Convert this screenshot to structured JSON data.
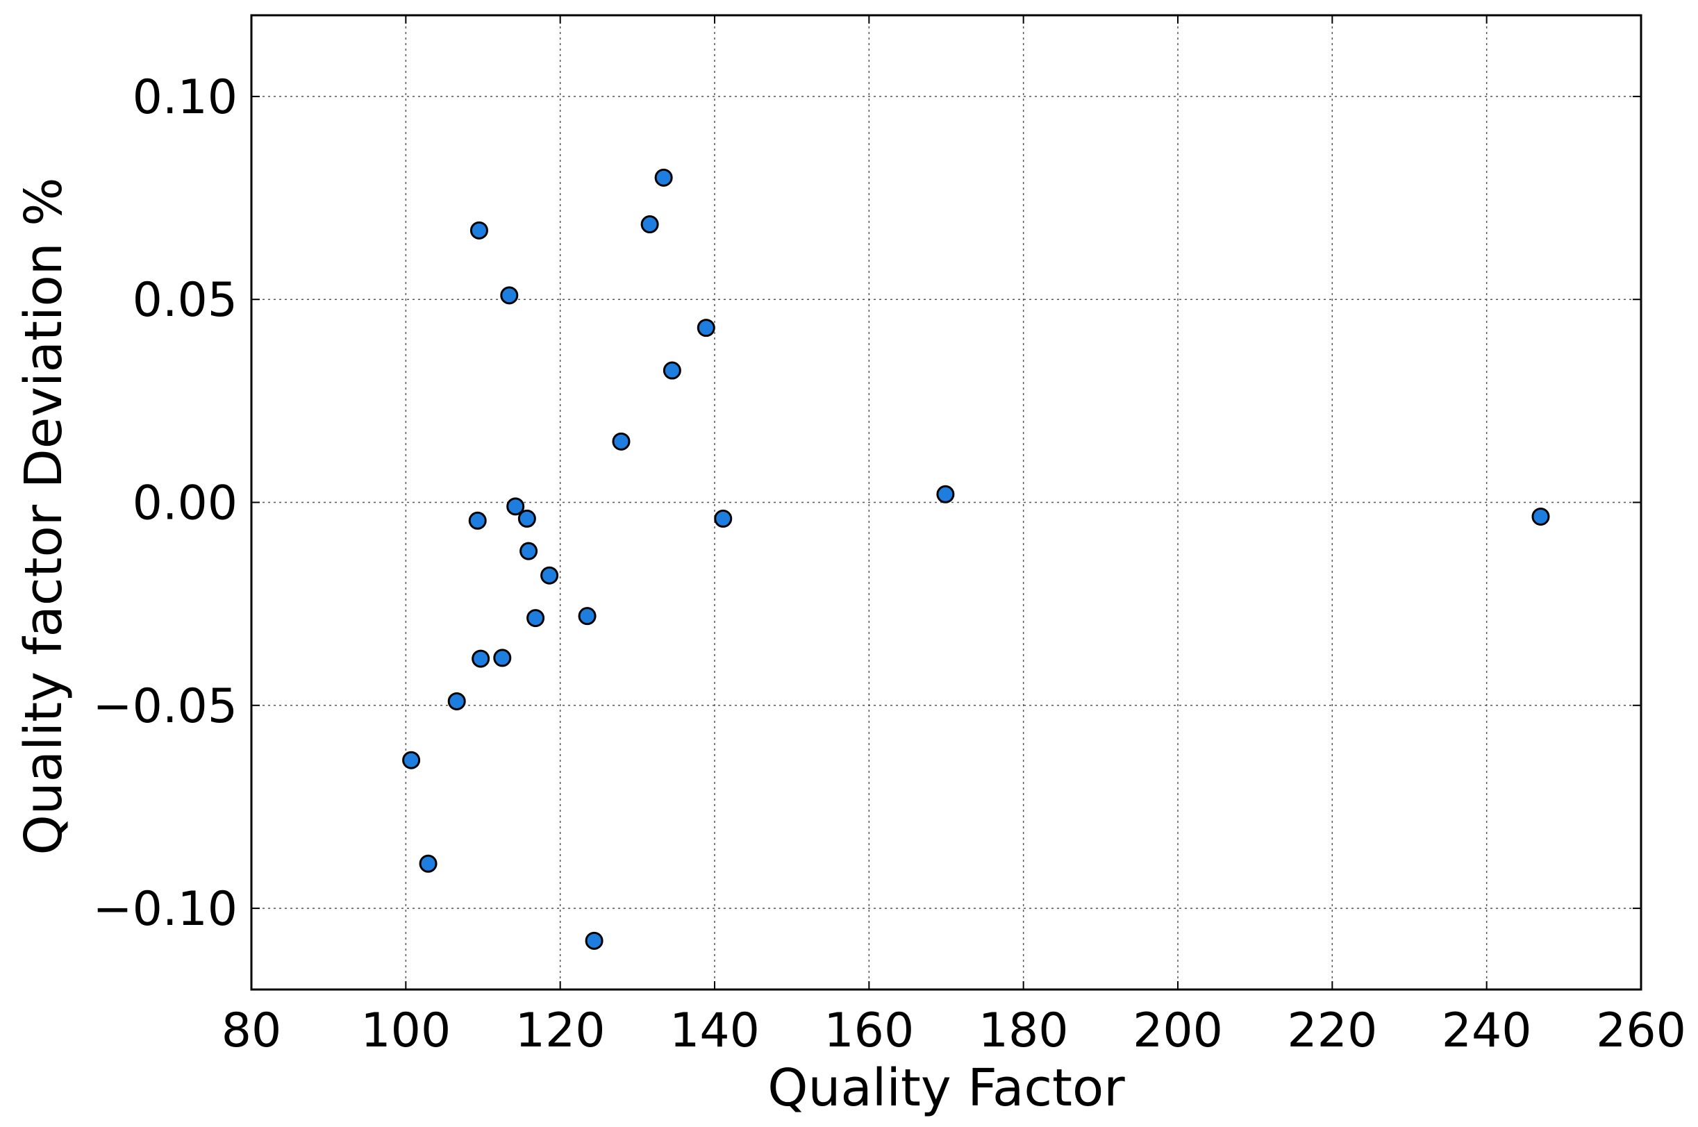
{
  "chart_data": {
    "type": "scatter",
    "title": "",
    "xlabel": "Quality Factor",
    "ylabel": "Quality factor Deviation %",
    "xlim": [
      80,
      260
    ],
    "ylim": [
      -0.12,
      0.12
    ],
    "x_ticks": [
      80,
      100,
      120,
      140,
      160,
      180,
      200,
      220,
      240,
      260
    ],
    "x_tick_labels": [
      "80",
      "100",
      "120",
      "140",
      "160",
      "180",
      "200",
      "220",
      "240",
      "260"
    ],
    "y_ticks": [
      0.1,
      0.05,
      0.0,
      -0.05,
      -0.1
    ],
    "y_tick_labels": [
      "0.10",
      "0.05",
      "0.00",
      "−0.05",
      "−0.10"
    ],
    "grid": true,
    "legend": "none",
    "marker_color": "#1e7ee0",
    "marker_edge_color": "#000000",
    "points": [
      {
        "x": 100.7,
        "y": -0.0635
      },
      {
        "x": 102.9,
        "y": -0.089
      },
      {
        "x": 106.6,
        "y": -0.049
      },
      {
        "x": 109.3,
        "y": -0.0045
      },
      {
        "x": 109.5,
        "y": 0.067
      },
      {
        "x": 109.7,
        "y": -0.0385
      },
      {
        "x": 112.5,
        "y": -0.0383
      },
      {
        "x": 113.4,
        "y": 0.051
      },
      {
        "x": 114.2,
        "y": -0.001
      },
      {
        "x": 115.7,
        "y": -0.004
      },
      {
        "x": 115.9,
        "y": -0.012
      },
      {
        "x": 116.8,
        "y": -0.0285
      },
      {
        "x": 118.6,
        "y": -0.018
      },
      {
        "x": 123.5,
        "y": -0.028
      },
      {
        "x": 124.4,
        "y": -0.108
      },
      {
        "x": 127.9,
        "y": 0.015
      },
      {
        "x": 131.6,
        "y": 0.0685
      },
      {
        "x": 133.4,
        "y": 0.08
      },
      {
        "x": 134.5,
        "y": 0.0325
      },
      {
        "x": 138.9,
        "y": 0.043
      },
      {
        "x": 141.1,
        "y": -0.004
      },
      {
        "x": 169.9,
        "y": 0.002
      },
      {
        "x": 247.0,
        "y": -0.0035
      }
    ]
  }
}
